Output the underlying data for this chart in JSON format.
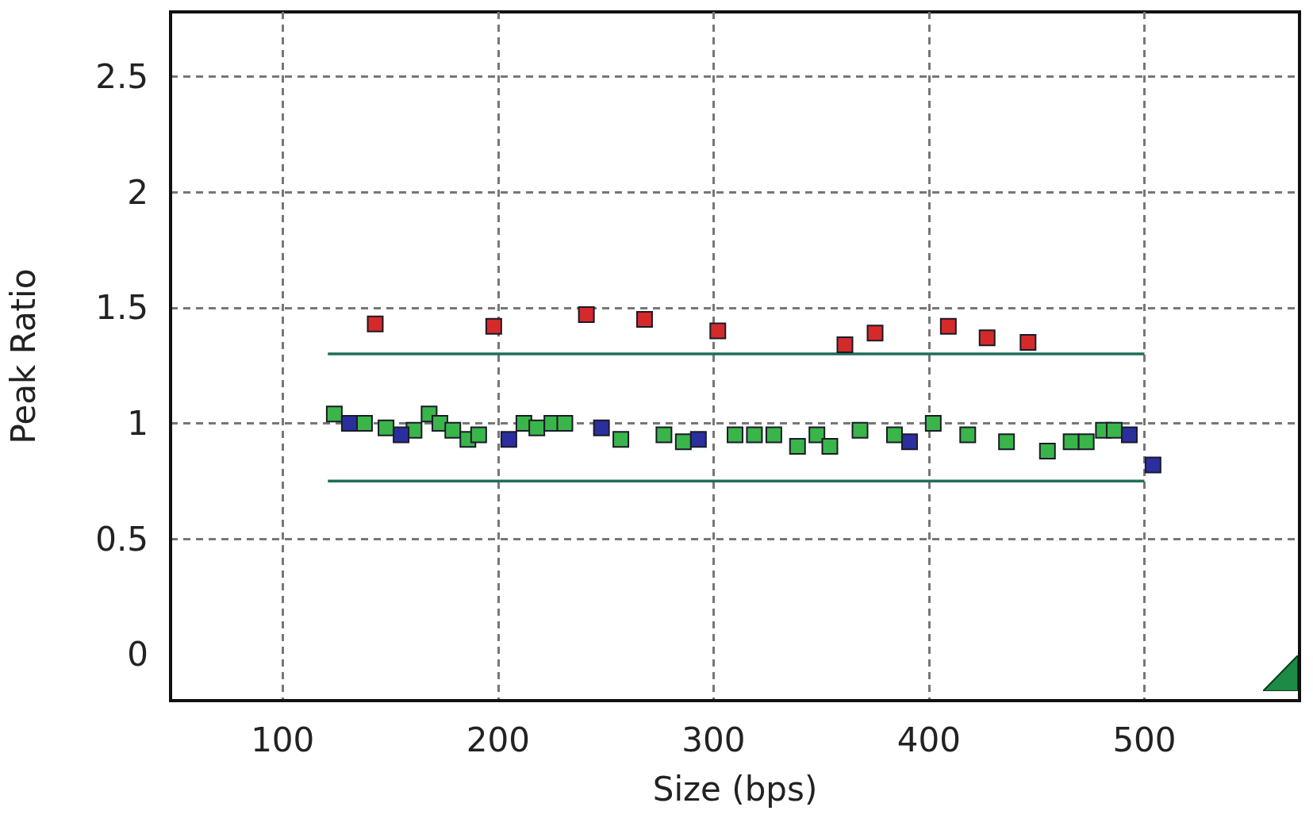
{
  "chart_data": {
    "type": "scatter",
    "xlabel": "Size (bps)",
    "ylabel": "Peak Ratio",
    "xlim": [
      48,
      572
    ],
    "xticks": [
      100,
      200,
      300,
      400,
      500
    ],
    "ylim": [
      -0.2,
      2.78
    ],
    "yticks": [
      0,
      0.5,
      1,
      1.5,
      2,
      2.5
    ],
    "grid": true,
    "marker": "square",
    "series": [
      {
        "type": "line",
        "color": "#1f6e58",
        "x": [
          121,
          500
        ],
        "values": [
          1.3,
          1.3
        ],
        "marker": "none"
      },
      {
        "type": "line",
        "color": "#1f6e58",
        "x": [
          121,
          500
        ],
        "values": [
          0.75,
          0.75
        ],
        "marker": "none"
      },
      {
        "color": "#d42a2a",
        "x": [
          143,
          198,
          241,
          268,
          302,
          361,
          375,
          409,
          427,
          446
        ],
        "values": [
          1.43,
          1.42,
          1.47,
          1.45,
          1.4,
          1.34,
          1.39,
          1.42,
          1.37,
          1.35
        ]
      },
      {
        "color": "#3ab54a",
        "x": [
          124,
          138,
          148,
          161,
          168,
          173,
          179,
          186,
          191,
          212,
          218,
          225,
          231,
          257,
          277,
          286,
          310,
          319,
          328,
          339,
          348,
          354,
          368,
          384,
          402,
          418,
          436,
          455,
          466,
          473,
          481,
          486
        ],
        "values": [
          1.04,
          1.0,
          0.98,
          0.97,
          1.04,
          1.0,
          0.97,
          0.93,
          0.95,
          1.0,
          0.98,
          1.0,
          1.0,
          0.93,
          0.95,
          0.92,
          0.95,
          0.95,
          0.95,
          0.9,
          0.95,
          0.9,
          0.97,
          0.95,
          1.0,
          0.95,
          0.92,
          0.88,
          0.92,
          0.92,
          0.97,
          0.97
        ]
      },
      {
        "color": "#2b2f9e",
        "x": [
          131,
          155,
          205,
          248,
          293,
          391,
          493,
          504
        ],
        "values": [
          1.0,
          0.95,
          0.93,
          0.98,
          0.93,
          0.92,
          0.95,
          0.82
        ]
      }
    ]
  }
}
